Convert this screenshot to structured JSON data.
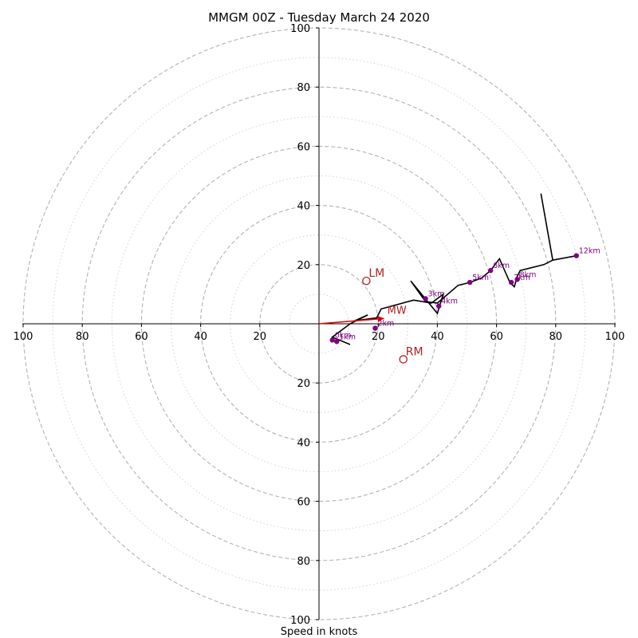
{
  "chart_data": {
    "type": "scatter",
    "title": "MMGM 00Z - Tuesday March 24 2020",
    "xlabel": "Speed in knots",
    "ylabel": "",
    "xlim": [
      -100,
      100
    ],
    "ylim": [
      -100,
      100
    ],
    "x_ticks": [
      {
        "value": -100,
        "label": "100"
      },
      {
        "value": -80,
        "label": "80"
      },
      {
        "value": -60,
        "label": "60"
      },
      {
        "value": -40,
        "label": "40"
      },
      {
        "value": -20,
        "label": "20"
      },
      {
        "value": 20,
        "label": "20"
      },
      {
        "value": 40,
        "label": "40"
      },
      {
        "value": 60,
        "label": "60"
      },
      {
        "value": 80,
        "label": "80"
      },
      {
        "value": 100,
        "label": "100"
      }
    ],
    "y_ticks": [
      {
        "value": 100,
        "label": "100"
      },
      {
        "value": 80,
        "label": "80"
      },
      {
        "value": 60,
        "label": "60"
      },
      {
        "value": 40,
        "label": "40"
      },
      {
        "value": 20,
        "label": "20"
      },
      {
        "value": -20,
        "label": "20"
      },
      {
        "value": -40,
        "label": "40"
      },
      {
        "value": -60,
        "label": "60"
      },
      {
        "value": -80,
        "label": "80"
      },
      {
        "value": -100,
        "label": "100"
      }
    ],
    "rings_dashed": [
      20,
      40,
      60,
      80,
      100
    ],
    "rings_dotted": [
      10,
      30,
      50,
      70,
      90
    ],
    "colors": {
      "hodograph": "#000000",
      "height_markers": "#800080",
      "motion": "#b22222",
      "mean_wind_arrow": "#dd0000",
      "rings": "#b3b3b3"
    },
    "hodograph": {
      "x": [
        10.5,
        4.5,
        10.5,
        16.5,
        12,
        19.5,
        21,
        32,
        38,
        42,
        40,
        31,
        36,
        40,
        47,
        51,
        55,
        58,
        61,
        64.5,
        66,
        67,
        68,
        76,
        79,
        75,
        79,
        87
      ],
      "y": [
        -7,
        -4.5,
        0,
        3,
        1,
        2,
        5,
        8,
        7,
        10,
        3.5,
        14.5,
        7.5,
        7,
        13,
        14,
        15.5,
        18,
        22,
        14,
        12.5,
        16,
        18,
        20,
        21.5,
        44,
        21.5,
        23
      ]
    },
    "height_markers": [
      {
        "label": "0km",
        "x": 4.5,
        "y": -5.5
      },
      {
        "label": "1km",
        "x": 6,
        "y": -6
      },
      {
        "label": "2km",
        "x": 19,
        "y": -1.5
      },
      {
        "label": "3km",
        "x": 36,
        "y": 8.5
      },
      {
        "label": "4km",
        "x": 40.5,
        "y": 6
      },
      {
        "label": "5km",
        "x": 51,
        "y": 14
      },
      {
        "label": "6km",
        "x": 58,
        "y": 18
      },
      {
        "label": "7km",
        "x": 65,
        "y": 14
      },
      {
        "label": "8km",
        "x": 67,
        "y": 15
      },
      {
        "label": "12km",
        "x": 87,
        "y": 23
      }
    ],
    "storm_motion": [
      {
        "label": "LM",
        "x": 16,
        "y": 14.5
      },
      {
        "label": "RM",
        "x": 28.5,
        "y": -12
      }
    ],
    "mean_wind": {
      "label": "MW",
      "x": 22,
      "y": 1.8
    }
  }
}
